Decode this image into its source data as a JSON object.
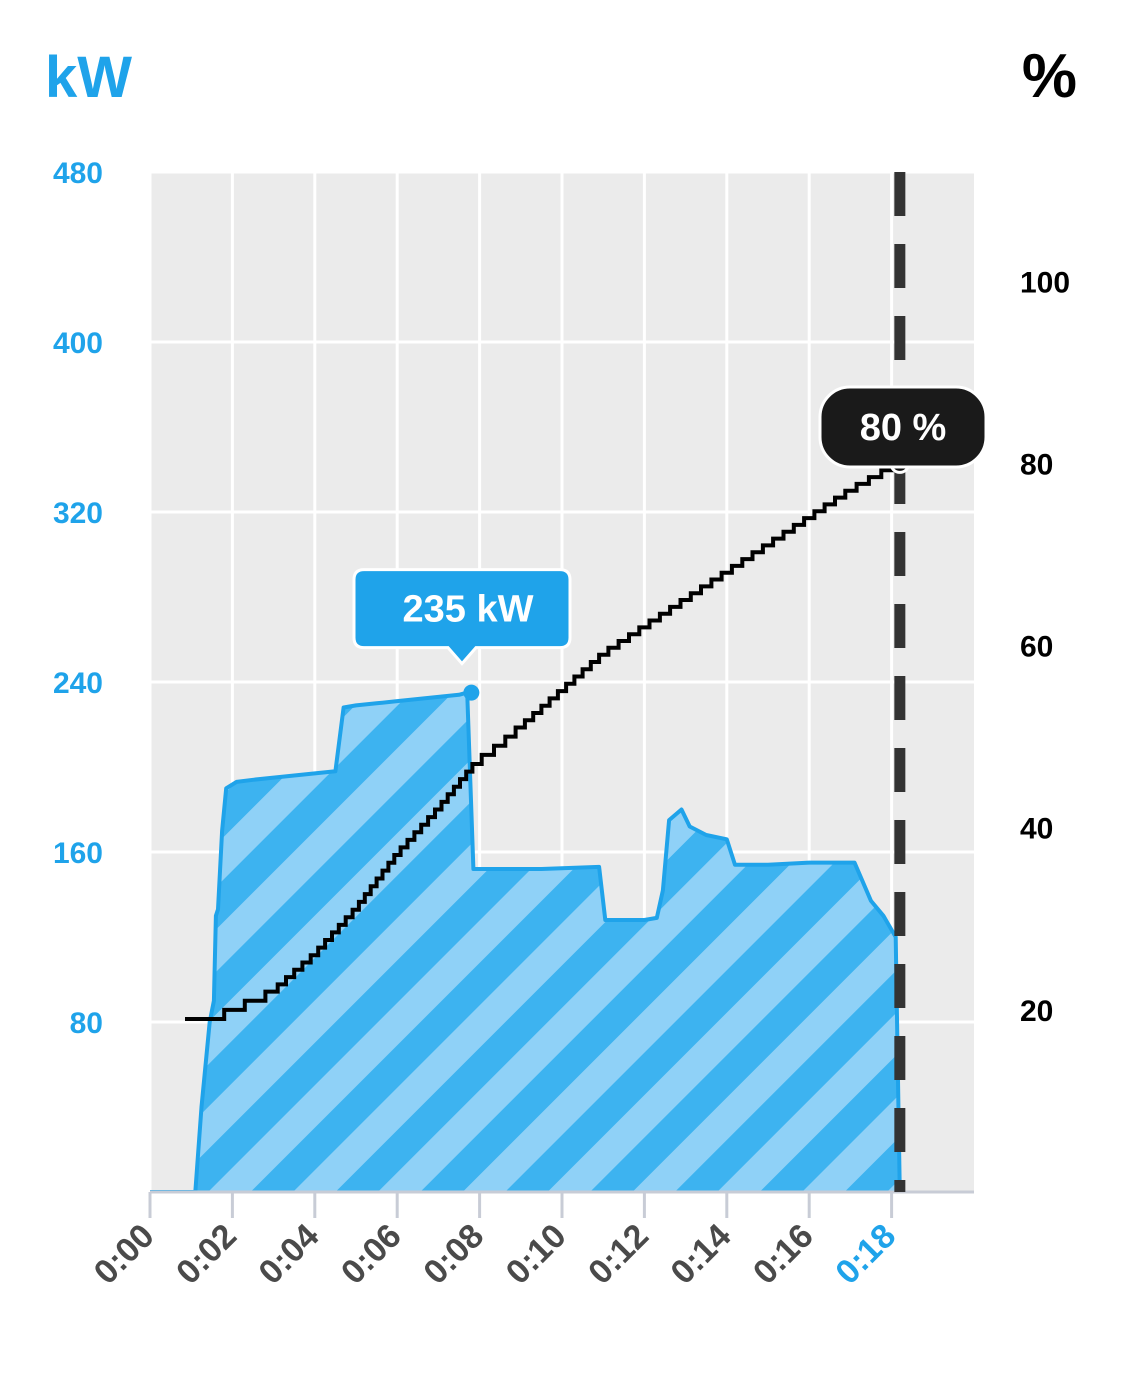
{
  "chart_data": {
    "type": "line",
    "title": "",
    "left_axis": {
      "label": "kW",
      "ticks": [
        80,
        160,
        240,
        320,
        400,
        480
      ],
      "range": [
        0,
        480
      ],
      "color": "#1fa3ea"
    },
    "right_axis": {
      "label": "%",
      "ticks": [
        20,
        40,
        60,
        80,
        100
      ],
      "range": [
        0,
        112
      ],
      "color": "#000000"
    },
    "x_axis": {
      "ticks": [
        "0:00",
        "0:02",
        "0:04",
        "0:06",
        "0:08",
        "0:10",
        "0:12",
        "0:14",
        "0:16",
        "0:18"
      ],
      "range_minutes": [
        0,
        20
      ],
      "current_tick": "0:18",
      "current_color": "#1fa3ea"
    },
    "grid": true,
    "series": [
      {
        "name": "kW",
        "style": "hatched-area",
        "color": "#1fa3ea",
        "points": [
          [
            0,
            0
          ],
          [
            1.1,
            0
          ],
          [
            1.25,
            40
          ],
          [
            1.45,
            80
          ],
          [
            1.55,
            90
          ],
          [
            1.6,
            130
          ],
          [
            1.65,
            133
          ],
          [
            1.75,
            170
          ],
          [
            1.85,
            190
          ],
          [
            2.1,
            193
          ],
          [
            2.5,
            194
          ],
          [
            3.0,
            195
          ],
          [
            3.5,
            196
          ],
          [
            4.0,
            197
          ],
          [
            4.5,
            198
          ],
          [
            4.7,
            228
          ],
          [
            5.0,
            229
          ],
          [
            5.5,
            230
          ],
          [
            6.0,
            231
          ],
          [
            6.5,
            232
          ],
          [
            7.0,
            233
          ],
          [
            7.5,
            234
          ],
          [
            7.7,
            235
          ],
          [
            7.85,
            152
          ],
          [
            8.5,
            152
          ],
          [
            9.5,
            152
          ],
          [
            10.9,
            153
          ],
          [
            11.05,
            128
          ],
          [
            12.0,
            128
          ],
          [
            12.3,
            129
          ],
          [
            12.45,
            142
          ],
          [
            12.6,
            175
          ],
          [
            12.9,
            180
          ],
          [
            13.1,
            172
          ],
          [
            13.5,
            168
          ],
          [
            14.0,
            166
          ],
          [
            14.2,
            154
          ],
          [
            15.0,
            154
          ],
          [
            16.0,
            155
          ],
          [
            17.1,
            155
          ],
          [
            17.5,
            137
          ],
          [
            17.8,
            130
          ],
          [
            18.1,
            120
          ],
          [
            18.2,
            0
          ]
        ],
        "callout": {
          "x": 7.8,
          "y": 235,
          "label": "235 kW"
        }
      },
      {
        "name": "%",
        "style": "step-line",
        "color": "#000000",
        "points": [
          [
            0.85,
            19
          ],
          [
            1.6,
            19
          ],
          [
            2.0,
            20
          ],
          [
            2.6,
            21
          ],
          [
            3.0,
            22
          ],
          [
            4.0,
            26
          ],
          [
            5.0,
            31
          ],
          [
            6.0,
            37
          ],
          [
            7.0,
            42
          ],
          [
            7.9,
            47
          ],
          [
            8.5,
            49
          ],
          [
            9.0,
            51
          ],
          [
            10.0,
            55
          ],
          [
            11.0,
            59
          ],
          [
            12.0,
            62
          ],
          [
            13.0,
            65
          ],
          [
            14.0,
            68
          ],
          [
            15.0,
            71
          ],
          [
            16.0,
            74
          ],
          [
            17.0,
            77
          ],
          [
            18.2,
            80
          ]
        ],
        "callout": {
          "x": 18.2,
          "y": 80,
          "label": "80 %"
        }
      }
    ],
    "current_marker_x": 18.2
  }
}
